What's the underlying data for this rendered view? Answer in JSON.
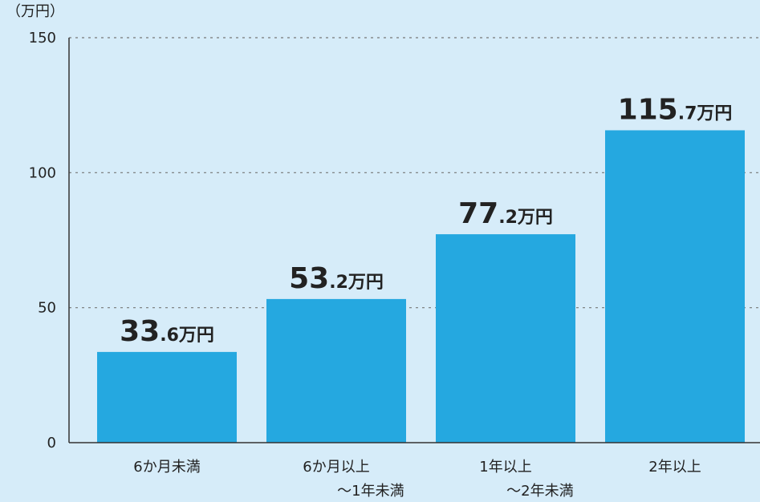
{
  "chart_data": {
    "type": "bar",
    "y_label": "（万円）",
    "categories": [
      "6か月未満",
      "6か月以上\n～1年未満",
      "1年以上\n～2年未満",
      "2年以上"
    ],
    "values": [
      33.6,
      53.2,
      77.2,
      115.7
    ],
    "value_labels": [
      "33.6万円",
      "53.2万円",
      "77.2万円",
      "115.7万円"
    ],
    "color": "#25a8e0",
    "ylim": [
      0,
      150
    ],
    "yticks": [
      0,
      50,
      100,
      150
    ],
    "grid": true
  }
}
